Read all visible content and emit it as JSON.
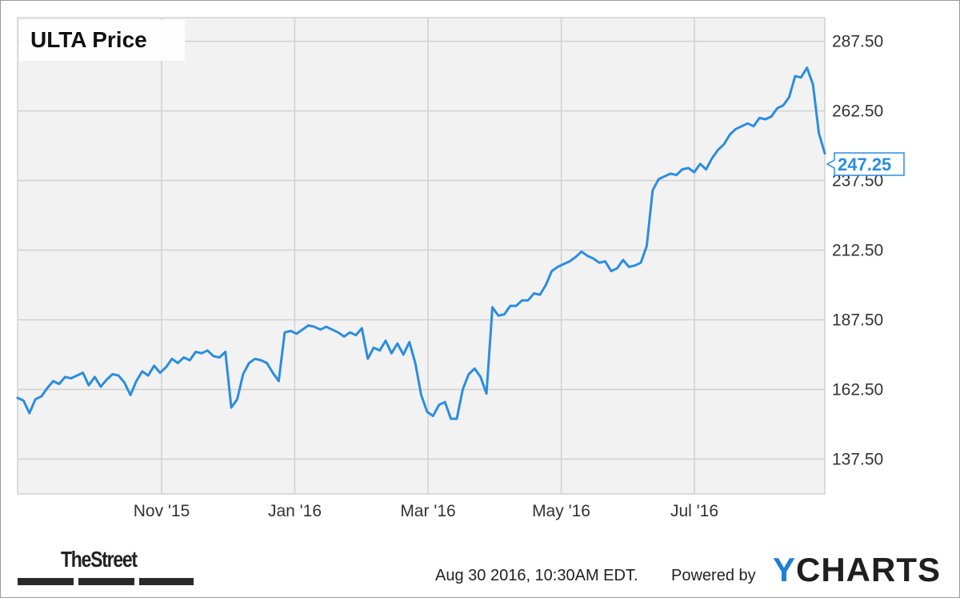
{
  "chart_data": {
    "type": "line",
    "title": "ULTA Price",
    "xlabel": "",
    "ylabel": "",
    "x_tick_labels": [
      "Nov '15",
      "Jan '16",
      "Mar '16",
      "May '16",
      "Jul '16"
    ],
    "y_tick_labels": [
      "137.50",
      "162.50",
      "187.50",
      "212.50",
      "237.50",
      "262.50",
      "287.50"
    ],
    "ylim": [
      125,
      296
    ],
    "grid": true,
    "current_value_label": "247.25",
    "line_color": "#2b8de0",
    "series": [
      {
        "values": [
          159.5,
          158.5,
          154.0,
          159.0,
          160.0,
          163.0,
          165.5,
          164.5,
          167.0,
          166.5,
          167.5,
          168.5,
          164.0,
          167.0,
          163.5,
          166.0,
          168.0,
          167.5,
          165.0,
          160.5,
          165.5,
          169.0,
          167.5,
          171.0,
          168.5,
          170.5,
          173.5,
          172.0,
          174.0,
          173.0,
          176.0,
          175.5,
          176.5,
          174.5,
          174.0,
          176.0,
          156.0,
          159.0,
          168.0,
          172.0,
          173.5,
          173.0,
          172.0,
          168.5,
          165.5,
          183.0,
          183.5,
          182.5,
          184.0,
          185.5,
          185.0,
          184.0,
          185.0,
          184.0,
          183.0,
          181.5,
          183.0,
          182.0,
          184.5,
          173.5,
          177.5,
          176.5,
          180.0,
          175.5,
          179.0,
          175.0,
          179.5,
          172.0,
          160.5,
          154.5,
          153.0,
          157.0,
          158.0,
          152.0,
          152.0,
          162.5,
          168.0,
          170.0,
          167.0,
          161.0,
          192.0,
          189.0,
          189.5,
          192.5,
          192.5,
          194.5,
          194.5,
          197.0,
          196.5,
          200.0,
          205.0,
          206.5,
          207.5,
          208.5,
          210.0,
          212.0,
          210.5,
          209.5,
          208.0,
          208.5,
          205.0,
          206.0,
          209.0,
          206.5,
          207.0,
          208.0,
          214.0,
          234.0,
          238.0,
          239.0,
          240.0,
          239.5,
          241.5,
          242.0,
          240.5,
          243.5,
          241.5,
          245.5,
          248.5,
          250.5,
          254.0,
          256.0,
          257.0,
          258.0,
          257.0,
          260.0,
          259.5,
          260.5,
          263.5,
          264.5,
          267.5,
          275.0,
          274.5,
          278.0,
          272.0,
          254.5,
          247.25
        ]
      }
    ]
  },
  "footer": {
    "publisher": "TheStreet",
    "timestamp": "Aug 30 2016, 10:30AM EDT.",
    "powered_by": "Powered by",
    "brand_y": "Y",
    "brand_rest": "CHARTS"
  }
}
